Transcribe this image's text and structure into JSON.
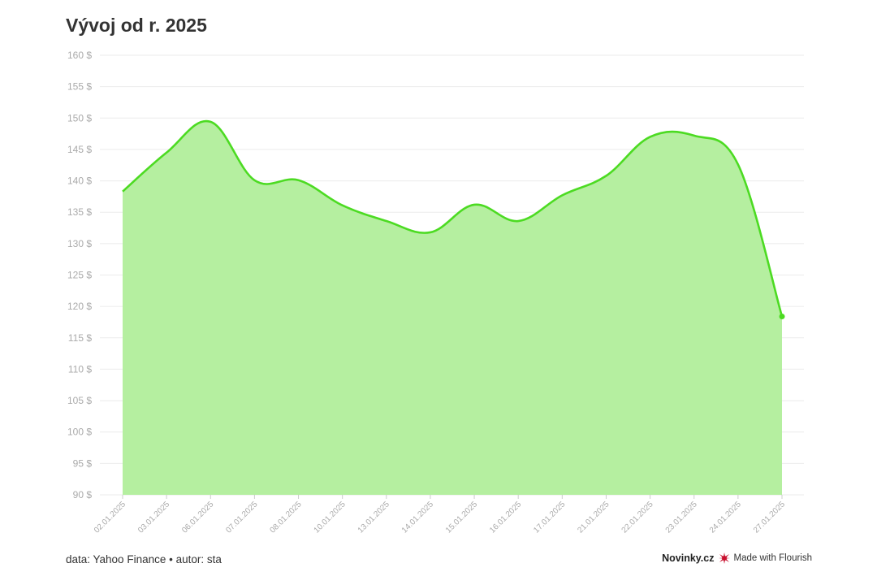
{
  "header": {
    "title": "Vývoj od r. 2025"
  },
  "footer": {
    "source": "data: Yahoo Finance • autor: sta",
    "brand": "Novinky.cz",
    "made_with": "Made with Flourish",
    "icon": "flourish-icon"
  },
  "colors": {
    "line": "#4cdb22",
    "area": "#b5efa0",
    "grid": "#ebebeb",
    "tick": "#aaaaaa"
  },
  "chart_data": {
    "type": "area",
    "title": "Vývoj od r. 2025",
    "xlabel": "",
    "ylabel": "",
    "ylim": [
      90,
      160
    ],
    "y_ticks": [
      90,
      95,
      100,
      105,
      110,
      115,
      120,
      125,
      130,
      135,
      140,
      145,
      150,
      155,
      160
    ],
    "y_tick_suffix": " $",
    "grid": true,
    "legend": "none",
    "categories": [
      "02.01.2025",
      "03.01.2025",
      "06.01.2025",
      "07.01.2025",
      "08.01.2025",
      "10.01.2025",
      "13.01.2025",
      "14.01.2025",
      "15.01.2025",
      "16.01.2025",
      "17.01.2025",
      "21.01.2025",
      "22.01.2025",
      "23.01.2025",
      "24.01.2025",
      "27.01.2025"
    ],
    "series": [
      {
        "values": [
          138.3,
          144.5,
          149.4,
          140.1,
          140.1,
          136.1,
          133.6,
          131.8,
          136.2,
          133.6,
          137.7,
          140.8,
          147.0,
          147.2,
          142.6,
          118.4
        ]
      }
    ]
  }
}
